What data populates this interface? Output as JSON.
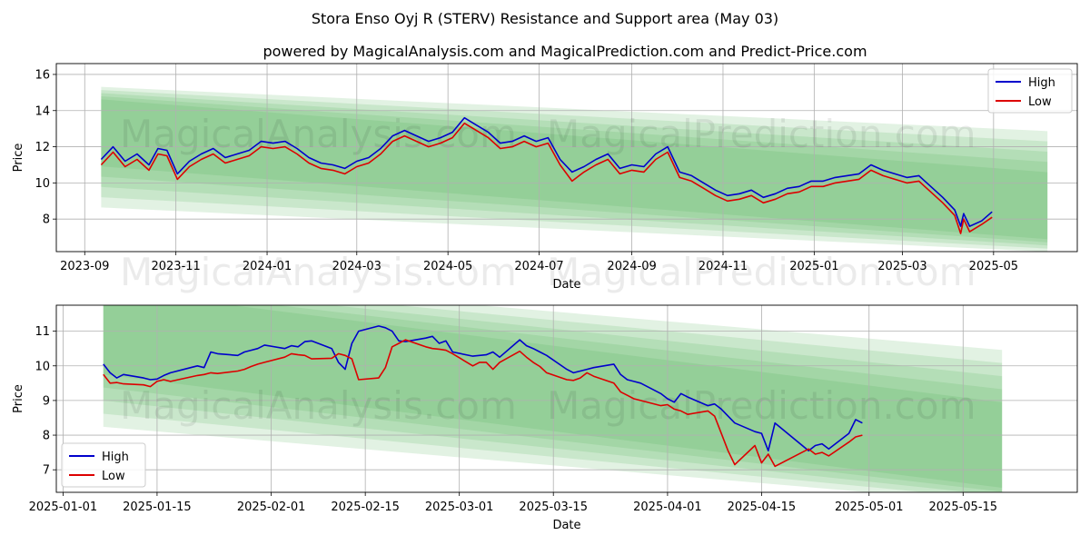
{
  "title": "Stora Enso Oyj R (STERV) Resistance and Support area (May 03)",
  "subtitle": "powered by MagicalAnalysis.com and MagicalPrediction.com and Predict-Price.com",
  "watermarks": [
    "MagicalAnalysis.com",
    "MagicalPrediction.com"
  ],
  "colors": {
    "high": "#0000cc",
    "low": "#dd0000",
    "band": "#4caf50",
    "grid": "#b0b0b0"
  },
  "chart_data": [
    {
      "type": "line",
      "xlabel": "Date",
      "ylabel": "Price",
      "x_ticks": [
        "2023-09",
        "2023-11",
        "2024-01",
        "2024-03",
        "2024-05",
        "2024-07",
        "2024-09",
        "2024-11",
        "2025-01",
        "2025-03",
        "2025-05"
      ],
      "y_ticks": [
        8,
        10,
        12,
        14,
        16
      ],
      "ylim": [
        6.2,
        16.6
      ],
      "xlim": [
        "2023-08-13",
        "2025-06-26"
      ],
      "grid": true,
      "legend": "top-right",
      "series": [
        {
          "name": "High",
          "color": "#0000cc",
          "x": [
            "2023-09-12",
            "2023-09-20",
            "2023-09-28",
            "2023-10-06",
            "2023-10-14",
            "2023-10-20",
            "2023-10-26",
            "2023-11-02",
            "2023-11-10",
            "2023-11-18",
            "2023-11-26",
            "2023-12-04",
            "2023-12-12",
            "2023-12-20",
            "2023-12-28",
            "2024-01-05",
            "2024-01-13",
            "2024-01-21",
            "2024-01-29",
            "2024-02-06",
            "2024-02-14",
            "2024-02-22",
            "2024-03-01",
            "2024-03-09",
            "2024-03-17",
            "2024-03-25",
            "2024-04-02",
            "2024-04-10",
            "2024-04-18",
            "2024-04-26",
            "2024-05-04",
            "2024-05-12",
            "2024-05-20",
            "2024-05-28",
            "2024-06-05",
            "2024-06-13",
            "2024-06-21",
            "2024-06-29",
            "2024-07-07",
            "2024-07-15",
            "2024-07-23",
            "2024-07-31",
            "2024-08-08",
            "2024-08-16",
            "2024-08-24",
            "2024-09-01",
            "2024-09-09",
            "2024-09-17",
            "2024-09-25",
            "2024-10-03",
            "2024-10-11",
            "2024-10-19",
            "2024-10-27",
            "2024-11-04",
            "2024-11-12",
            "2024-11-20",
            "2024-11-28",
            "2024-12-06",
            "2024-12-14",
            "2024-12-22",
            "2024-12-30",
            "2025-01-07",
            "2025-01-15",
            "2025-01-23",
            "2025-01-31",
            "2025-02-08",
            "2025-02-16",
            "2025-02-24",
            "2025-03-04",
            "2025-03-12",
            "2025-03-20",
            "2025-03-28",
            "2025-04-05",
            "2025-04-09",
            "2025-04-11",
            "2025-04-15",
            "2025-04-23",
            "2025-04-30"
          ],
          "values": [
            11.3,
            12.0,
            11.2,
            11.6,
            11.0,
            11.9,
            11.8,
            10.5,
            11.2,
            11.6,
            11.9,
            11.4,
            11.6,
            11.8,
            12.3,
            12.2,
            12.3,
            11.9,
            11.4,
            11.1,
            11.0,
            10.8,
            11.2,
            11.4,
            11.9,
            12.6,
            12.9,
            12.6,
            12.3,
            12.5,
            12.8,
            13.6,
            13.2,
            12.8,
            12.2,
            12.3,
            12.6,
            12.3,
            12.5,
            11.3,
            10.6,
            10.9,
            11.3,
            11.6,
            10.8,
            11.0,
            10.9,
            11.6,
            12.0,
            10.6,
            10.4,
            10.0,
            9.6,
            9.3,
            9.4,
            9.6,
            9.2,
            9.4,
            9.7,
            9.8,
            10.1,
            10.1,
            10.3,
            10.4,
            10.5,
            11.0,
            10.7,
            10.5,
            10.3,
            10.4,
            9.8,
            9.2,
            8.5,
            7.6,
            8.3,
            7.6,
            7.9,
            8.4
          ]
        },
        {
          "name": "Low",
          "color": "#dd0000",
          "x": [
            "2023-09-12",
            "2023-09-20",
            "2023-09-28",
            "2023-10-06",
            "2023-10-14",
            "2023-10-20",
            "2023-10-26",
            "2023-11-02",
            "2023-11-10",
            "2023-11-18",
            "2023-11-26",
            "2023-12-04",
            "2023-12-12",
            "2023-12-20",
            "2023-12-28",
            "2024-01-05",
            "2024-01-13",
            "2024-01-21",
            "2024-01-29",
            "2024-02-06",
            "2024-02-14",
            "2024-02-22",
            "2024-03-01",
            "2024-03-09",
            "2024-03-17",
            "2024-03-25",
            "2024-04-02",
            "2024-04-10",
            "2024-04-18",
            "2024-04-26",
            "2024-05-04",
            "2024-05-12",
            "2024-05-20",
            "2024-05-28",
            "2024-06-05",
            "2024-06-13",
            "2024-06-21",
            "2024-06-29",
            "2024-07-07",
            "2024-07-15",
            "2024-07-23",
            "2024-07-31",
            "2024-08-08",
            "2024-08-16",
            "2024-08-24",
            "2024-09-01",
            "2024-09-09",
            "2024-09-17",
            "2024-09-25",
            "2024-10-03",
            "2024-10-11",
            "2024-10-19",
            "2024-10-27",
            "2024-11-04",
            "2024-11-12",
            "2024-11-20",
            "2024-11-28",
            "2024-12-06",
            "2024-12-14",
            "2024-12-22",
            "2024-12-30",
            "2025-01-07",
            "2025-01-15",
            "2025-01-23",
            "2025-01-31",
            "2025-02-08",
            "2025-02-16",
            "2025-02-24",
            "2025-03-04",
            "2025-03-12",
            "2025-03-20",
            "2025-03-28",
            "2025-04-05",
            "2025-04-09",
            "2025-04-11",
            "2025-04-15",
            "2025-04-23",
            "2025-04-30"
          ],
          "values": [
            11.0,
            11.7,
            10.9,
            11.3,
            10.7,
            11.6,
            11.5,
            10.2,
            10.9,
            11.3,
            11.6,
            11.1,
            11.3,
            11.5,
            12.0,
            11.9,
            12.0,
            11.6,
            11.1,
            10.8,
            10.7,
            10.5,
            10.9,
            11.1,
            11.6,
            12.3,
            12.6,
            12.3,
            12.0,
            12.2,
            12.5,
            13.3,
            12.9,
            12.5,
            11.9,
            12.0,
            12.3,
            12.0,
            12.2,
            11.0,
            10.1,
            10.6,
            11.0,
            11.3,
            10.5,
            10.7,
            10.6,
            11.3,
            11.7,
            10.3,
            10.1,
            9.7,
            9.3,
            9.0,
            9.1,
            9.3,
            8.9,
            9.1,
            9.4,
            9.5,
            9.8,
            9.8,
            10.0,
            10.1,
            10.2,
            10.7,
            10.4,
            10.2,
            10.0,
            10.1,
            9.5,
            8.9,
            8.2,
            7.2,
            8.0,
            7.3,
            7.7,
            8.1
          ]
        }
      ]
    },
    {
      "type": "line",
      "xlabel": "Date",
      "ylabel": "Price",
      "x_ticks": [
        "2025-01-01",
        "2025-01-15",
        "2025-02-01",
        "2025-02-15",
        "2025-03-01",
        "2025-03-15",
        "2025-04-01",
        "2025-04-15",
        "2025-05-01",
        "2025-05-15"
      ],
      "y_ticks": [
        7,
        8,
        9,
        10,
        11
      ],
      "ylim": [
        6.35,
        11.75
      ],
      "xlim": [
        "2024-12-31",
        "2025-06-01"
      ],
      "grid": true,
      "legend": "bottom-left",
      "series": [
        {
          "name": "High",
          "color": "#0000cc",
          "x": [
            "2025-01-07",
            "2025-01-08",
            "2025-01-09",
            "2025-01-10",
            "2025-01-13",
            "2025-01-14",
            "2025-01-15",
            "2025-01-16",
            "2025-01-17",
            "2025-01-20",
            "2025-01-21",
            "2025-01-22",
            "2025-01-23",
            "2025-01-24",
            "2025-01-27",
            "2025-01-28",
            "2025-01-29",
            "2025-01-30",
            "2025-01-31",
            "2025-02-03",
            "2025-02-04",
            "2025-02-05",
            "2025-02-06",
            "2025-02-07",
            "2025-02-10",
            "2025-02-11",
            "2025-02-12",
            "2025-02-13",
            "2025-02-14",
            "2025-02-17",
            "2025-02-18",
            "2025-02-19",
            "2025-02-20",
            "2025-02-21",
            "2025-02-24",
            "2025-02-25",
            "2025-02-26",
            "2025-02-27",
            "2025-02-28",
            "2025-03-03",
            "2025-03-04",
            "2025-03-05",
            "2025-03-06",
            "2025-03-07",
            "2025-03-10",
            "2025-03-11",
            "2025-03-12",
            "2025-03-13",
            "2025-03-14",
            "2025-03-17",
            "2025-03-18",
            "2025-03-19",
            "2025-03-20",
            "2025-03-21",
            "2025-03-24",
            "2025-03-25",
            "2025-03-26",
            "2025-03-27",
            "2025-03-28",
            "2025-03-31",
            "2025-04-01",
            "2025-04-02",
            "2025-04-03",
            "2025-04-04",
            "2025-04-07",
            "2025-04-08",
            "2025-04-09",
            "2025-04-10",
            "2025-04-11",
            "2025-04-14",
            "2025-04-15",
            "2025-04-16",
            "2025-04-17",
            "2025-04-22",
            "2025-04-23",
            "2025-04-24",
            "2025-04-25",
            "2025-04-28",
            "2025-04-29",
            "2025-04-30"
          ],
          "values": [
            10.05,
            9.8,
            9.65,
            9.75,
            9.65,
            9.6,
            9.62,
            9.72,
            9.8,
            9.95,
            10.0,
            9.95,
            10.4,
            10.35,
            10.3,
            10.4,
            10.45,
            10.5,
            10.6,
            10.5,
            10.58,
            10.55,
            10.7,
            10.72,
            10.5,
            10.1,
            9.9,
            10.65,
            11.0,
            11.15,
            11.1,
            11.0,
            10.72,
            10.7,
            10.8,
            10.85,
            10.65,
            10.72,
            10.4,
            10.28,
            10.3,
            10.32,
            10.4,
            10.25,
            10.75,
            10.58,
            10.5,
            10.4,
            10.3,
            9.9,
            9.8,
            9.85,
            9.9,
            9.95,
            10.05,
            9.75,
            9.6,
            9.55,
            9.5,
            9.2,
            9.05,
            8.95,
            9.2,
            9.1,
            8.85,
            8.9,
            8.75,
            8.55,
            8.35,
            8.1,
            8.05,
            7.55,
            8.35,
            7.55,
            7.7,
            7.75,
            7.6,
            8.05,
            8.45,
            8.35
          ]
        },
        {
          "name": "Low",
          "color": "#dd0000",
          "x": [
            "2025-01-07",
            "2025-01-08",
            "2025-01-09",
            "2025-01-10",
            "2025-01-13",
            "2025-01-14",
            "2025-01-15",
            "2025-01-16",
            "2025-01-17",
            "2025-01-20",
            "2025-01-21",
            "2025-01-22",
            "2025-01-23",
            "2025-01-24",
            "2025-01-27",
            "2025-01-28",
            "2025-01-29",
            "2025-01-30",
            "2025-01-31",
            "2025-02-03",
            "2025-02-04",
            "2025-02-05",
            "2025-02-06",
            "2025-02-07",
            "2025-02-10",
            "2025-02-11",
            "2025-02-12",
            "2025-02-13",
            "2025-02-14",
            "2025-02-17",
            "2025-02-18",
            "2025-02-19",
            "2025-02-20",
            "2025-02-21",
            "2025-02-24",
            "2025-02-25",
            "2025-02-26",
            "2025-02-27",
            "2025-02-28",
            "2025-03-03",
            "2025-03-04",
            "2025-03-05",
            "2025-03-06",
            "2025-03-07",
            "2025-03-10",
            "2025-03-11",
            "2025-03-12",
            "2025-03-13",
            "2025-03-14",
            "2025-03-17",
            "2025-03-18",
            "2025-03-19",
            "2025-03-20",
            "2025-03-21",
            "2025-03-24",
            "2025-03-25",
            "2025-03-26",
            "2025-03-27",
            "2025-03-28",
            "2025-03-31",
            "2025-04-01",
            "2025-04-02",
            "2025-04-03",
            "2025-04-04",
            "2025-04-07",
            "2025-04-08",
            "2025-04-09",
            "2025-04-10",
            "2025-04-11",
            "2025-04-14",
            "2025-04-15",
            "2025-04-16",
            "2025-04-17",
            "2025-04-22",
            "2025-04-23",
            "2025-04-24",
            "2025-04-25",
            "2025-04-28",
            "2025-04-29",
            "2025-04-30"
          ],
          "values": [
            9.75,
            9.5,
            9.52,
            9.48,
            9.45,
            9.4,
            9.55,
            9.6,
            9.55,
            9.68,
            9.72,
            9.75,
            9.8,
            9.78,
            9.85,
            9.9,
            9.98,
            10.05,
            10.1,
            10.25,
            10.35,
            10.32,
            10.3,
            10.2,
            10.22,
            10.35,
            10.3,
            10.2,
            9.6,
            9.65,
            9.95,
            10.55,
            10.65,
            10.75,
            10.55,
            10.5,
            10.48,
            10.45,
            10.35,
            10.0,
            10.1,
            10.1,
            9.9,
            10.1,
            10.42,
            10.25,
            10.1,
            9.98,
            9.8,
            9.6,
            9.58,
            9.65,
            9.8,
            9.7,
            9.5,
            9.25,
            9.15,
            9.05,
            9.0,
            8.85,
            8.88,
            8.75,
            8.7,
            8.6,
            8.7,
            8.55,
            8.05,
            7.55,
            7.15,
            7.7,
            7.2,
            7.45,
            7.1,
            7.6,
            7.45,
            7.5,
            7.4,
            7.8,
            7.95,
            8.0
          ]
        }
      ]
    }
  ]
}
